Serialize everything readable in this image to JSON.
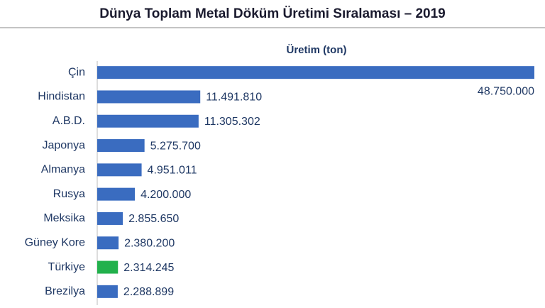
{
  "chart_data": {
    "type": "bar",
    "orientation": "horizontal",
    "title": "Dünya Toplam Metal Döküm Üretimi Sıralaması – 2019",
    "categories": [
      "Çin",
      "Hindistan",
      "A.B.D.",
      "Japonya",
      "Almanya",
      "Rusya",
      "Meksika",
      "Güney Kore",
      "Türkiye",
      "Brezilya"
    ],
    "series": [
      {
        "name": "Üretim (ton)",
        "colors": [
          "#3a6cc0",
          "#3a6cc0",
          "#3a6cc0",
          "#3a6cc0",
          "#3a6cc0",
          "#3a6cc0",
          "#3a6cc0",
          "#3a6cc0",
          "#22b14c",
          "#3a6cc0"
        ],
        "values": [
          48750000,
          11491810,
          11305302,
          5275700,
          4951011,
          4200000,
          2855650,
          2380200,
          2314245,
          2288899
        ],
        "value_labels": [
          "48.750.000",
          "11.491.810",
          "11.305.302",
          "5.275.700",
          "4.951.011",
          "4.200.000",
          "2.855.650",
          "2.380.200",
          "2.314.245",
          "2.288.899"
        ]
      }
    ],
    "grid": false
  }
}
